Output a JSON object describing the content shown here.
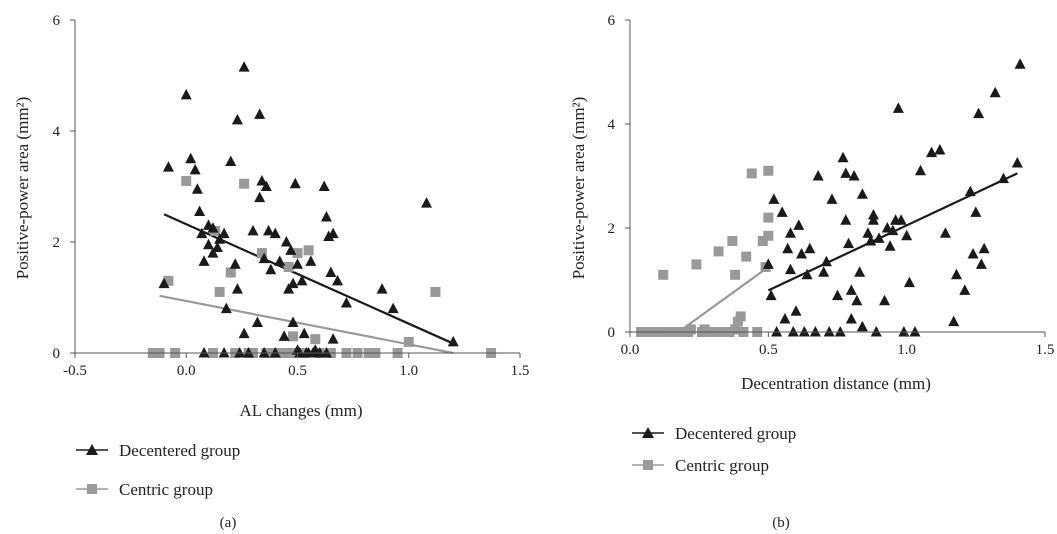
{
  "colors": {
    "decentered": "#1a1a1a",
    "centric": "#999999",
    "axis": "#555555"
  },
  "chart_data": [
    {
      "type": "scatter",
      "panel_label": "(a)",
      "xlabel": "AL changes (mm)",
      "ylabel": "Positive-power area (mm²)",
      "xlim": [
        -0.5,
        1.5
      ],
      "ylim": [
        0,
        6
      ],
      "x_ticks": [
        "-0.5",
        "0.0",
        "0.5",
        "1.0",
        "1.5"
      ],
      "y_ticks": [
        "0",
        "2",
        "4",
        "6"
      ],
      "grid": false,
      "legend_position": "bottom-left",
      "series": [
        {
          "name": "Decentered group",
          "marker": "triangle",
          "points": [
            [
              -0.1,
              1.25
            ],
            [
              -0.08,
              3.35
            ],
            [
              0.0,
              4.65
            ],
            [
              0.02,
              3.5
            ],
            [
              0.04,
              3.3
            ],
            [
              0.05,
              2.95
            ],
            [
              0.06,
              2.55
            ],
            [
              0.07,
              2.15
            ],
            [
              0.08,
              1.65
            ],
            [
              0.08,
              0.0
            ],
            [
              0.1,
              2.3
            ],
            [
              0.1,
              1.95
            ],
            [
              0.12,
              2.25
            ],
            [
              0.12,
              1.8
            ],
            [
              0.14,
              1.9
            ],
            [
              0.15,
              2.05
            ],
            [
              0.17,
              2.15
            ],
            [
              0.17,
              0.0
            ],
            [
              0.18,
              0.8
            ],
            [
              0.2,
              3.45
            ],
            [
              0.22,
              1.6
            ],
            [
              0.23,
              4.2
            ],
            [
              0.23,
              1.15
            ],
            [
              0.24,
              0.0
            ],
            [
              0.26,
              5.15
            ],
            [
              0.26,
              0.35
            ],
            [
              0.28,
              0.0
            ],
            [
              0.3,
              2.2
            ],
            [
              0.32,
              0.55
            ],
            [
              0.33,
              4.3
            ],
            [
              0.33,
              2.8
            ],
            [
              0.34,
              3.1
            ],
            [
              0.35,
              1.7
            ],
            [
              0.35,
              0.0
            ],
            [
              0.36,
              3.0
            ],
            [
              0.37,
              2.2
            ],
            [
              0.38,
              1.5
            ],
            [
              0.4,
              0.0
            ],
            [
              0.4,
              2.15
            ],
            [
              0.42,
              1.65
            ],
            [
              0.44,
              0.3
            ],
            [
              0.45,
              2.0
            ],
            [
              0.46,
              1.15
            ],
            [
              0.47,
              1.85
            ],
            [
              0.48,
              1.25
            ],
            [
              0.48,
              0.55
            ],
            [
              0.49,
              3.05
            ],
            [
              0.5,
              0.05
            ],
            [
              0.5,
              1.6
            ],
            [
              0.51,
              0.0
            ],
            [
              0.52,
              1.3
            ],
            [
              0.53,
              0.35
            ],
            [
              0.54,
              0.0
            ],
            [
              0.55,
              0.0
            ],
            [
              0.56,
              1.65
            ],
            [
              0.57,
              0.0
            ],
            [
              0.58,
              0.05
            ],
            [
              0.6,
              0.0
            ],
            [
              0.62,
              3.0
            ],
            [
              0.63,
              2.45
            ],
            [
              0.63,
              0.0
            ],
            [
              0.64,
              2.1
            ],
            [
              0.65,
              1.45
            ],
            [
              0.66,
              0.25
            ],
            [
              0.66,
              2.15
            ],
            [
              0.68,
              1.3
            ],
            [
              0.72,
              0.9
            ],
            [
              0.88,
              1.15
            ],
            [
              0.93,
              0.8
            ],
            [
              1.08,
              2.7
            ],
            [
              1.2,
              0.2
            ]
          ],
          "trend": [
            [
              -0.1,
              2.5
            ],
            [
              1.2,
              0.17
            ]
          ]
        },
        {
          "name": "Centric group",
          "marker": "square",
          "points": [
            [
              -0.15,
              0.0
            ],
            [
              -0.12,
              0.0
            ],
            [
              -0.08,
              1.3
            ],
            [
              -0.05,
              0.0
            ],
            [
              0.0,
              3.1
            ],
            [
              0.12,
              0.0
            ],
            [
              0.13,
              2.2
            ],
            [
              0.15,
              1.1
            ],
            [
              0.2,
              1.45
            ],
            [
              0.22,
              0.0
            ],
            [
              0.26,
              3.05
            ],
            [
              0.28,
              0.0
            ],
            [
              0.3,
              0.0
            ],
            [
              0.34,
              1.8
            ],
            [
              0.36,
              0.0
            ],
            [
              0.4,
              0.0
            ],
            [
              0.43,
              0.0
            ],
            [
              0.46,
              1.55
            ],
            [
              0.47,
              0.0
            ],
            [
              0.48,
              0.3
            ],
            [
              0.5,
              1.8
            ],
            [
              0.53,
              0.0
            ],
            [
              0.55,
              1.85
            ],
            [
              0.58,
              0.25
            ],
            [
              0.6,
              0.0
            ],
            [
              0.65,
              0.0
            ],
            [
              0.72,
              0.0
            ],
            [
              0.77,
              0.0
            ],
            [
              0.82,
              0.0
            ],
            [
              0.85,
              0.0
            ],
            [
              0.95,
              0.0
            ],
            [
              1.0,
              0.2
            ],
            [
              1.12,
              1.1
            ],
            [
              1.37,
              0.0
            ]
          ],
          "trend": [
            [
              -0.12,
              1.03
            ],
            [
              1.2,
              0.0
            ]
          ]
        }
      ]
    },
    {
      "type": "scatter",
      "panel_label": "(b)",
      "xlabel": "Decentration distance (mm)",
      "ylabel": "Positive-power area (mm²)",
      "xlim": [
        0.0,
        1.5
      ],
      "ylim": [
        0,
        6
      ],
      "x_ticks": [
        "0.0",
        "0.5",
        "1.0",
        "1.5"
      ],
      "y_ticks": [
        "0",
        "2",
        "4",
        "6"
      ],
      "grid": false,
      "legend_position": "bottom-left",
      "series": [
        {
          "name": "Decentered group",
          "marker": "triangle",
          "points": [
            [
              0.5,
              1.3
            ],
            [
              0.51,
              0.7
            ],
            [
              0.52,
              2.55
            ],
            [
              0.53,
              0.0
            ],
            [
              0.55,
              2.3
            ],
            [
              0.56,
              0.25
            ],
            [
              0.57,
              1.6
            ],
            [
              0.58,
              1.2
            ],
            [
              0.58,
              1.9
            ],
            [
              0.59,
              0.0
            ],
            [
              0.6,
              0.4
            ],
            [
              0.61,
              2.05
            ],
            [
              0.62,
              1.5
            ],
            [
              0.63,
              0.0
            ],
            [
              0.64,
              1.1
            ],
            [
              0.65,
              1.6
            ],
            [
              0.67,
              0.0
            ],
            [
              0.68,
              3.0
            ],
            [
              0.7,
              1.15
            ],
            [
              0.71,
              1.35
            ],
            [
              0.72,
              0.0
            ],
            [
              0.73,
              2.55
            ],
            [
              0.75,
              0.7
            ],
            [
              0.76,
              0.0
            ],
            [
              0.77,
              3.35
            ],
            [
              0.78,
              2.15
            ],
            [
              0.78,
              3.05
            ],
            [
              0.79,
              1.7
            ],
            [
              0.8,
              0.8
            ],
            [
              0.8,
              0.25
            ],
            [
              0.81,
              3.0
            ],
            [
              0.82,
              0.6
            ],
            [
              0.83,
              1.15
            ],
            [
              0.84,
              2.65
            ],
            [
              0.84,
              0.1
            ],
            [
              0.86,
              1.9
            ],
            [
              0.87,
              1.75
            ],
            [
              0.88,
              2.25
            ],
            [
              0.88,
              2.15
            ],
            [
              0.89,
              0.0
            ],
            [
              0.9,
              1.8
            ],
            [
              0.92,
              0.6
            ],
            [
              0.93,
              2.0
            ],
            [
              0.94,
              1.65
            ],
            [
              0.95,
              1.95
            ],
            [
              0.96,
              2.15
            ],
            [
              0.97,
              4.3
            ],
            [
              0.98,
              2.15
            ],
            [
              0.99,
              0.0
            ],
            [
              1.0,
              1.85
            ],
            [
              1.01,
              0.95
            ],
            [
              1.03,
              0.0
            ],
            [
              1.05,
              3.1
            ],
            [
              1.09,
              3.45
            ],
            [
              1.12,
              3.5
            ],
            [
              1.14,
              1.9
            ],
            [
              1.17,
              0.2
            ],
            [
              1.18,
              1.1
            ],
            [
              1.21,
              0.8
            ],
            [
              1.23,
              2.7
            ],
            [
              1.24,
              1.5
            ],
            [
              1.25,
              2.3
            ],
            [
              1.26,
              4.2
            ],
            [
              1.27,
              1.3
            ],
            [
              1.28,
              1.6
            ],
            [
              1.32,
              4.6
            ],
            [
              1.35,
              2.95
            ],
            [
              1.4,
              3.25
            ],
            [
              1.41,
              5.15
            ]
          ],
          "trend": [
            [
              0.5,
              0.8
            ],
            [
              1.4,
              3.05
            ]
          ]
        },
        {
          "name": "Centric group",
          "marker": "square",
          "points": [
            [
              0.04,
              0.0
            ],
            [
              0.06,
              0.0
            ],
            [
              0.08,
              0.0
            ],
            [
              0.1,
              0.0
            ],
            [
              0.12,
              1.1
            ],
            [
              0.13,
              0.0
            ],
            [
              0.15,
              0.0
            ],
            [
              0.17,
              0.0
            ],
            [
              0.19,
              0.0
            ],
            [
              0.21,
              0.0
            ],
            [
              0.22,
              0.05
            ],
            [
              0.24,
              1.3
            ],
            [
              0.26,
              0.0
            ],
            [
              0.27,
              0.05
            ],
            [
              0.29,
              0.0
            ],
            [
              0.31,
              0.0
            ],
            [
              0.32,
              1.55
            ],
            [
              0.34,
              0.0
            ],
            [
              0.36,
              0.0
            ],
            [
              0.37,
              1.75
            ],
            [
              0.38,
              0.05
            ],
            [
              0.38,
              1.1
            ],
            [
              0.39,
              0.2
            ],
            [
              0.4,
              0.3
            ],
            [
              0.41,
              0.0
            ],
            [
              0.42,
              1.45
            ],
            [
              0.44,
              3.05
            ],
            [
              0.46,
              0.0
            ],
            [
              0.48,
              1.75
            ],
            [
              0.49,
              1.25
            ],
            [
              0.5,
              2.2
            ],
            [
              0.5,
              1.85
            ],
            [
              0.5,
              3.1
            ]
          ],
          "trend": [
            [
              0.18,
              0.02
            ],
            [
              0.5,
              1.25
            ]
          ]
        }
      ]
    }
  ]
}
